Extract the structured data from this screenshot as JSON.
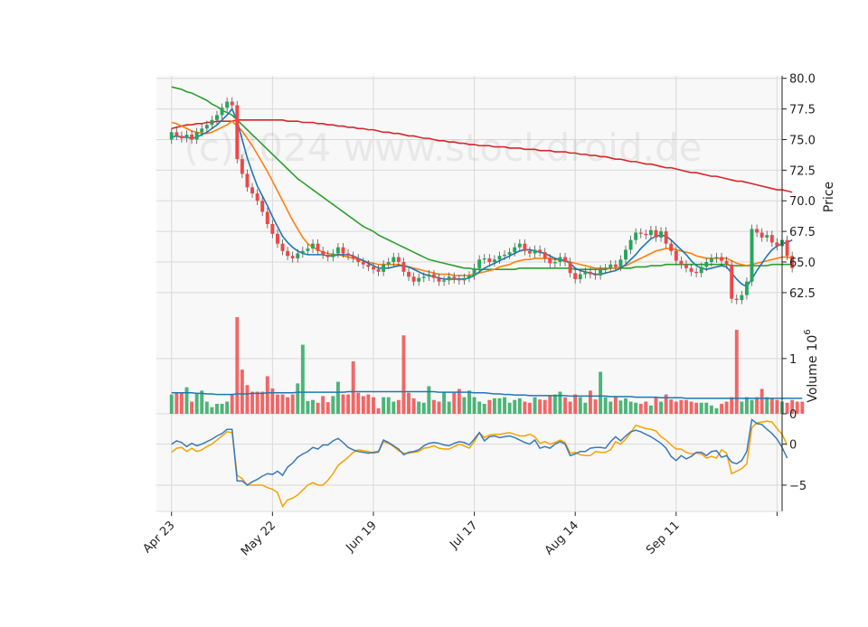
{
  "watermark": "(c)2024 www.stockdroid.de",
  "colors": {
    "up": "#26a65b",
    "down": "#f04646",
    "ma_blue": "#1f77b4",
    "ma_orange": "#ff7f0e",
    "ma_green": "#2ca02c",
    "ma_red": "#d62728",
    "macd": "#3a7ab8",
    "signal": "#f5a300",
    "grid": "#d9d9d9",
    "panel_bg": "#f8f8f8"
  },
  "chart_data": [
    {
      "type": "candlestick",
      "name": "price",
      "ylabel": "Price",
      "ylim": [
        60.5,
        80.2
      ],
      "yticks": [
        "62.5",
        "65.0",
        "67.5",
        "70.0",
        "72.5",
        "75.0",
        "77.5",
        "80.0"
      ],
      "ytick_values": [
        62.5,
        65.0,
        67.5,
        70.0,
        72.5,
        75.0,
        77.5,
        80.0
      ],
      "xlim": [
        -3,
        121
      ],
      "x_dates": [
        "Apr 23",
        "May 22",
        "Jun 19",
        "Jul 17",
        "Aug 14",
        "Sep 11"
      ],
      "x_date_index": [
        0,
        20,
        40,
        60,
        80,
        100
      ],
      "extra_xtick_index": 120,
      "closes": [
        75.6,
        75.3,
        75.1,
        75.4,
        75.0,
        75.6,
        75.9,
        76.2,
        76.6,
        77.0,
        77.6,
        78.1,
        77.8,
        73.4,
        72.2,
        71.1,
        70.6,
        70.0,
        69.1,
        68.1,
        67.3,
        66.5,
        65.9,
        65.5,
        65.3,
        65.7,
        65.9,
        66.1,
        66.5,
        65.9,
        65.6,
        65.4,
        65.7,
        66.2,
        65.7,
        65.5,
        65.3,
        65.0,
        64.8,
        64.6,
        64.4,
        64.2,
        64.8,
        65.0,
        65.4,
        65.0,
        64.2,
        63.8,
        63.4,
        63.7,
        63.8,
        64.0,
        63.7,
        63.4,
        63.5,
        63.8,
        63.6,
        63.5,
        63.7,
        63.9,
        64.5,
        65.2,
        65.3,
        65.0,
        65.2,
        65.5,
        65.6,
        65.8,
        66.2,
        66.5,
        65.9,
        65.7,
        66.0,
        65.8,
        65.3,
        64.9,
        65.0,
        65.4,
        65.0,
        64.1,
        63.6,
        64.0,
        64.2,
        64.0,
        63.9,
        64.4,
        64.5,
        64.8,
        64.6,
        65.2,
        66.0,
        66.8,
        67.4,
        67.3,
        67.2,
        67.6,
        67.0,
        67.5,
        66.5,
        65.9,
        65.1,
        64.8,
        64.5,
        64.2,
        64.1,
        64.6,
        65.0,
        65.3,
        65.4,
        65.1,
        64.8,
        62.0,
        61.9,
        62.3,
        63.4,
        67.7,
        67.4,
        67.0,
        67.2,
        66.6,
        66.3,
        66.8,
        65.5,
        64.5
      ],
      "ma_blue": [
        75.2,
        75.3,
        75.2,
        75.2,
        75.1,
        75.2,
        75.4,
        75.6,
        75.9,
        76.2,
        76.6,
        77.0,
        77.5,
        76.5,
        75.0,
        73.5,
        72.3,
        71.2,
        70.4,
        69.6,
        68.7,
        67.9,
        67.1,
        66.6,
        66.2,
        65.9,
        65.7,
        65.6,
        65.6,
        65.6,
        65.6,
        65.5,
        65.5,
        65.6,
        65.6,
        65.6,
        65.5,
        65.3,
        65.1,
        64.9,
        64.7,
        64.5,
        64.5,
        64.5,
        64.6,
        64.7,
        64.7,
        64.6,
        64.4,
        64.2,
        64.0,
        63.9,
        63.8,
        63.7,
        63.6,
        63.6,
        63.6,
        63.6,
        63.6,
        63.7,
        63.9,
        64.2,
        64.5,
        64.7,
        64.9,
        65.1,
        65.3,
        65.5,
        65.7,
        65.9,
        66.0,
        66.0,
        65.9,
        65.8,
        65.7,
        65.5,
        65.3,
        65.2,
        65.1,
        64.9,
        64.5,
        64.3,
        64.2,
        64.1,
        64.0,
        64.0,
        64.1,
        64.2,
        64.3,
        64.5,
        64.8,
        65.2,
        65.6,
        66.1,
        66.5,
        66.9,
        67.1,
        67.2,
        67.1,
        66.8,
        66.4,
        66.0,
        65.6,
        65.1,
        64.7,
        64.5,
        64.4,
        64.5,
        64.6,
        64.7,
        64.6,
        64.1,
        63.6,
        63.2,
        63.0,
        63.6,
        64.3,
        64.9,
        65.5,
        66.0,
        66.3,
        66.5,
        66.6,
        66.8
      ],
      "ma_orange": [
        76.4,
        76.3,
        76.1,
        75.9,
        75.7,
        75.6,
        75.5,
        75.5,
        75.6,
        75.8,
        76.0,
        76.2,
        76.5,
        76.1,
        75.7,
        75.1,
        74.5,
        73.8,
        73.1,
        72.4,
        71.6,
        70.8,
        70.0,
        69.2,
        68.4,
        67.7,
        67.0,
        66.5,
        66.2,
        66.0,
        65.8,
        65.7,
        65.6,
        65.6,
        65.5,
        65.4,
        65.3,
        65.2,
        65.1,
        65.0,
        64.9,
        64.8,
        64.8,
        64.8,
        64.8,
        64.8,
        64.7,
        64.6,
        64.5,
        64.4,
        64.3,
        64.2,
        64.1,
        64.0,
        64.0,
        64.0,
        63.9,
        63.9,
        63.9,
        63.9,
        64.0,
        64.1,
        64.2,
        64.3,
        64.4,
        64.6,
        64.7,
        64.8,
        65.0,
        65.1,
        65.2,
        65.2,
        65.3,
        65.3,
        65.3,
        65.3,
        65.2,
        65.2,
        65.1,
        65.0,
        64.9,
        64.8,
        64.7,
        64.6,
        64.5,
        64.5,
        64.5,
        64.5,
        64.5,
        64.6,
        64.7,
        64.9,
        65.1,
        65.3,
        65.5,
        65.7,
        65.9,
        66.0,
        66.1,
        66.1,
        66.0,
        65.9,
        65.8,
        65.7,
        65.5,
        65.4,
        65.3,
        65.3,
        65.3,
        65.3,
        65.3,
        65.1,
        64.9,
        64.8,
        64.7,
        64.8,
        64.9,
        65.0,
        65.1,
        65.2,
        65.3,
        65.4,
        65.4,
        65.3
      ],
      "ma_green": [
        79.3,
        79.2,
        79.1,
        78.9,
        78.8,
        78.6,
        78.4,
        78.2,
        77.9,
        77.7,
        77.4,
        77.2,
        77.0,
        76.6,
        76.2,
        75.8,
        75.4,
        75.0,
        74.6,
        74.2,
        73.8,
        73.4,
        73.0,
        72.6,
        72.2,
        71.8,
        71.5,
        71.2,
        70.9,
        70.6,
        70.3,
        70.0,
        69.7,
        69.4,
        69.1,
        68.8,
        68.5,
        68.2,
        67.9,
        67.7,
        67.5,
        67.2,
        67.0,
        66.8,
        66.6,
        66.4,
        66.2,
        66.0,
        65.8,
        65.6,
        65.4,
        65.2,
        65.1,
        65.0,
        64.9,
        64.8,
        64.7,
        64.6,
        64.5,
        64.5,
        64.4,
        64.4,
        64.4,
        64.4,
        64.4,
        64.4,
        64.4,
        64.4,
        64.4,
        64.5,
        64.5,
        64.5,
        64.5,
        64.5,
        64.5,
        64.5,
        64.5,
        64.5,
        64.5,
        64.5,
        64.4,
        64.4,
        64.4,
        64.4,
        64.4,
        64.4,
        64.4,
        64.5,
        64.5,
        64.5,
        64.5,
        64.5,
        64.6,
        64.6,
        64.6,
        64.7,
        64.7,
        64.7,
        64.8,
        64.8,
        64.8,
        64.8,
        64.8,
        64.8,
        64.8,
        64.8,
        64.8,
        64.8,
        64.8,
        64.8,
        64.8,
        64.7,
        64.7,
        64.7,
        64.7,
        64.7,
        64.7,
        64.7,
        64.7,
        64.8,
        64.8,
        64.8,
        64.8,
        64.8
      ],
      "ma_red": [
        75.9,
        76.0,
        76.1,
        76.2,
        76.2,
        76.3,
        76.3,
        76.4,
        76.4,
        76.5,
        76.5,
        76.5,
        76.5,
        76.6,
        76.6,
        76.6,
        76.6,
        76.6,
        76.6,
        76.6,
        76.6,
        76.6,
        76.6,
        76.5,
        76.5,
        76.5,
        76.4,
        76.4,
        76.4,
        76.3,
        76.3,
        76.2,
        76.2,
        76.1,
        76.1,
        76.0,
        76.0,
        75.9,
        75.9,
        75.8,
        75.8,
        75.7,
        75.6,
        75.6,
        75.5,
        75.5,
        75.4,
        75.3,
        75.3,
        75.2,
        75.1,
        75.1,
        75.0,
        74.9,
        74.9,
        74.8,
        74.8,
        74.7,
        74.7,
        74.6,
        74.6,
        74.5,
        74.5,
        74.5,
        74.4,
        74.4,
        74.4,
        74.3,
        74.3,
        74.3,
        74.2,
        74.2,
        74.2,
        74.1,
        74.1,
        74.1,
        74.0,
        74.0,
        74.0,
        73.9,
        73.9,
        73.8,
        73.8,
        73.7,
        73.7,
        73.6,
        73.6,
        73.5,
        73.4,
        73.4,
        73.3,
        73.2,
        73.2,
        73.1,
        73.0,
        73.0,
        72.9,
        72.8,
        72.7,
        72.7,
        72.6,
        72.5,
        72.4,
        72.3,
        72.3,
        72.2,
        72.1,
        72.0,
        72.0,
        71.9,
        71.8,
        71.7,
        71.6,
        71.6,
        71.5,
        71.4,
        71.3,
        71.2,
        71.1,
        71.0,
        70.9,
        70.9,
        70.8,
        70.7
      ]
    },
    {
      "type": "bar",
      "name": "volume",
      "ylabel": "Volume",
      "ylabel_exponent": "10",
      "ylabel_exponent_power": "6",
      "ylim": [
        0,
        1.75
      ],
      "yticks": [
        "0",
        "1"
      ],
      "ytick_values": [
        0,
        1
      ],
      "volumes": [
        0.35,
        0.38,
        0.38,
        0.48,
        0.22,
        0.38,
        0.42,
        0.22,
        0.12,
        0.18,
        0.18,
        0.22,
        0.35,
        1.75,
        0.8,
        0.52,
        0.4,
        0.4,
        0.4,
        0.68,
        0.46,
        0.35,
        0.35,
        0.3,
        0.35,
        0.55,
        1.25,
        0.23,
        0.25,
        0.2,
        0.32,
        0.21,
        0.32,
        0.58,
        0.35,
        0.35,
        0.95,
        0.38,
        0.32,
        0.35,
        0.3,
        0.1,
        0.3,
        0.3,
        0.22,
        0.25,
        1.42,
        0.38,
        0.28,
        0.22,
        0.2,
        0.5,
        0.25,
        0.22,
        0.4,
        0.22,
        0.38,
        0.45,
        0.3,
        0.42,
        0.3,
        0.22,
        0.18,
        0.25,
        0.28,
        0.28,
        0.3,
        0.2,
        0.25,
        0.28,
        0.22,
        0.2,
        0.3,
        0.26,
        0.25,
        0.32,
        0.35,
        0.4,
        0.3,
        0.22,
        0.35,
        0.3,
        0.2,
        0.42,
        0.26,
        0.76,
        0.3,
        0.22,
        0.32,
        0.24,
        0.28,
        0.22,
        0.2,
        0.18,
        0.22,
        0.15,
        0.3,
        0.22,
        0.35,
        0.26,
        0.22,
        0.25,
        0.25,
        0.22,
        0.2,
        0.2,
        0.2,
        0.15,
        0.1,
        0.18,
        0.22,
        0.3,
        1.52,
        0.22,
        0.3,
        0.25,
        0.3,
        0.45,
        0.3,
        0.28,
        0.25,
        0.22,
        0.2,
        0.25,
        0.22,
        0.22
      ],
      "vol_ma": [
        0.38,
        0.38,
        0.38,
        0.38,
        0.38,
        0.37,
        0.37,
        0.36,
        0.36,
        0.35,
        0.35,
        0.35,
        0.35,
        0.36,
        0.36,
        0.36,
        0.37,
        0.37,
        0.37,
        0.38,
        0.38,
        0.38,
        0.38,
        0.38,
        0.38,
        0.39,
        0.39,
        0.39,
        0.39,
        0.39,
        0.39,
        0.39,
        0.39,
        0.39,
        0.39,
        0.4,
        0.4,
        0.4,
        0.4,
        0.4,
        0.4,
        0.4,
        0.4,
        0.4,
        0.4,
        0.4,
        0.4,
        0.4,
        0.4,
        0.4,
        0.4,
        0.4,
        0.4,
        0.39,
        0.39,
        0.39,
        0.39,
        0.39,
        0.39,
        0.39,
        0.38,
        0.38,
        0.38,
        0.37,
        0.36,
        0.36,
        0.35,
        0.35,
        0.34,
        0.34,
        0.34,
        0.33,
        0.33,
        0.33,
        0.33,
        0.33,
        0.33,
        0.33,
        0.33,
        0.32,
        0.32,
        0.32,
        0.32,
        0.32,
        0.32,
        0.32,
        0.32,
        0.31,
        0.31,
        0.31,
        0.31,
        0.31,
        0.3,
        0.3,
        0.3,
        0.3,
        0.3,
        0.29,
        0.29,
        0.29,
        0.29,
        0.29,
        0.28,
        0.28,
        0.28,
        0.28,
        0.28,
        0.28,
        0.28,
        0.28,
        0.28,
        0.28,
        0.28,
        0.28,
        0.28,
        0.28,
        0.28,
        0.28,
        0.28,
        0.28,
        0.28,
        0.28,
        0.28,
        0.28,
        0.28,
        0.28
      ]
    },
    {
      "type": "line",
      "name": "macd",
      "ylim": [
        -8.2,
        3.7
      ],
      "yticks": [
        "−5",
        "0"
      ],
      "ytick_values": [
        -5,
        0
      ],
      "macd": [
        0.0,
        0.4,
        0.2,
        -0.3,
        0.1,
        -0.2,
        0.0,
        0.3,
        0.6,
        1.0,
        1.3,
        1.8,
        1.8,
        -4.5,
        -4.5,
        -5.0,
        -4.6,
        -4.3,
        -3.9,
        -3.6,
        -3.7,
        -3.3,
        -3.8,
        -2.8,
        -2.3,
        -1.6,
        -1.2,
        -0.9,
        -0.4,
        -0.6,
        -0.1,
        -0.1,
        0.4,
        0.7,
        0.2,
        -0.4,
        -0.7,
        -0.9,
        -1.0,
        -1.1,
        -1.0,
        -0.9,
        0.5,
        0.2,
        -0.2,
        -0.6,
        -1.3,
        -1.0,
        -0.9,
        -0.7,
        -0.2,
        0.1,
        0.2,
        0.1,
        -0.1,
        -0.2,
        0.1,
        0.3,
        0.2,
        -0.1,
        0.6,
        1.4,
        0.4,
        0.9,
        1.0,
        0.8,
        0.9,
        1.0,
        0.8,
        0.5,
        0.2,
        0.0,
        0.5,
        -0.5,
        -0.3,
        -0.5,
        0.0,
        0.3,
        0.0,
        -1.4,
        -1.2,
        -0.9,
        -0.9,
        -0.5,
        -0.4,
        -0.4,
        -0.5,
        0.3,
        0.9,
        0.4,
        1.0,
        1.5,
        1.7,
        1.5,
        1.2,
        0.9,
        0.5,
        0.1,
        -0.5,
        -1.5,
        -2.0,
        -1.4,
        -1.8,
        -1.5,
        -1.0,
        -1.0,
        -1.4,
        -0.9,
        -0.8,
        -1.6,
        -1.4,
        -2.2,
        -2.4,
        -2.0,
        -0.9,
        3.0,
        2.5,
        2.4,
        1.8,
        1.3,
        0.6,
        -0.4,
        -1.7
      ],
      "signal": [
        -1.0,
        -0.5,
        -0.4,
        -0.9,
        -0.5,
        -0.9,
        -0.7,
        -0.3,
        0.0,
        0.5,
        1.0,
        1.5,
        1.4,
        -3.8,
        -4.2,
        -5.0,
        -5.0,
        -5.0,
        -5.0,
        -5.3,
        -5.5,
        -5.9,
        -7.6,
        -6.8,
        -6.6,
        -6.2,
        -5.6,
        -5.0,
        -4.7,
        -5.0,
        -5.0,
        -4.4,
        -3.6,
        -2.6,
        -2.1,
        -1.6,
        -1.0,
        -0.7,
        -0.8,
        -0.9,
        -1.1,
        -1.0,
        0.3,
        0.1,
        -0.3,
        -0.8,
        -1.1,
        -1.1,
        -1.0,
        -0.9,
        -0.5,
        -0.4,
        -0.2,
        -0.5,
        -0.6,
        -0.6,
        -0.3,
        0.0,
        -0.2,
        -0.5,
        0.3,
        1.4,
        0.8,
        1.1,
        1.2,
        1.2,
        1.3,
        1.4,
        1.2,
        1.0,
        1.0,
        1.2,
        0.9,
        0.1,
        0.3,
        0.0,
        0.2,
        0.5,
        0.2,
        -1.1,
        -1.0,
        -1.3,
        -1.4,
        -1.4,
        -0.9,
        -1.0,
        -1.0,
        -0.7,
        0.3,
        0.0,
        0.6,
        1.4,
        2.3,
        2.1,
        1.9,
        1.8,
        1.6,
        0.9,
        0.5,
        -0.1,
        -0.6,
        -0.6,
        -1.0,
        -1.2,
        -1.1,
        -1.2,
        -1.7,
        -1.5,
        -1.7,
        -0.7,
        -1.1,
        -3.6,
        -3.3,
        -3.0,
        -2.4,
        2.0,
        2.6,
        2.7,
        2.8,
        2.7,
        1.9,
        1.2,
        -0.1
      ]
    }
  ]
}
